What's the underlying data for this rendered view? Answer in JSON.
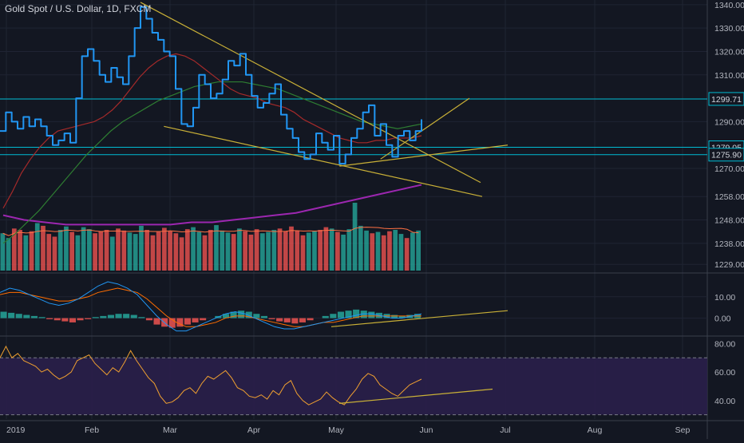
{
  "title": "Gold Spot / U.S. Dollar, 1D, FXCM",
  "colors": {
    "background": "#131722",
    "grid": "#1f2433",
    "price_line": "#2196f3",
    "sma_short": "#a52a2a",
    "sma_mid": "#2e7d32",
    "sma_long": "#9c27b0",
    "trendline": "#c9b037",
    "horizontal_level": "#00bcd4",
    "volume_up": "#26a69a",
    "volume_down": "#ef5350",
    "volume_ma": "#ff7043",
    "macd_line": "#2196f3",
    "signal_line": "#ff6d00",
    "rsi_line": "#f0a030",
    "rsi_band": "#2a1f4a",
    "axis_text": "#b2b5be"
  },
  "chart_data": [
    {
      "type": "line",
      "panel": "price",
      "title": "Gold Spot / U.S. Dollar, 1D, FXCM",
      "ylim": [
        1226,
        1342
      ],
      "x_ticks": [
        "2019",
        "Feb",
        "Mar",
        "Apr",
        "May",
        "Jun",
        "Jul",
        "Aug",
        "Sep"
      ],
      "y_ticks": [
        1340.0,
        1330.0,
        1320.0,
        1310.0,
        1290.0,
        1270.0,
        1258.0,
        1248.0,
        1238.0,
        1229.0
      ],
      "y_tick_labels": [
        "1340.00",
        "1330.00",
        "1320.00",
        "1310.00",
        "1290.00",
        "1270.00",
        "1258.00",
        "1248.00",
        "1238.00",
        "1229.00"
      ],
      "price_labels": [
        {
          "label": "1299.71",
          "value": 1299.71
        },
        {
          "label": "1279.05",
          "value": 1279.05
        },
        {
          "label": "1275.90",
          "value": 1275.9
        }
      ],
      "horizontal_levels": [
        1299.71,
        1279.05,
        1275.9
      ],
      "series": [
        {
          "role": "price",
          "values": [
            1286,
            1294,
            1290,
            1287,
            1292,
            1288,
            1291,
            1288,
            1284,
            1280,
            1282,
            1285,
            1281,
            1300,
            1318,
            1321,
            1316,
            1310,
            1307,
            1313,
            1309,
            1306,
            1318,
            1330,
            1339,
            1334,
            1328,
            1325,
            1320,
            1318,
            1304,
            1289,
            1288,
            1296,
            1310,
            1306,
            1300,
            1302,
            1308,
            1316,
            1314,
            1319,
            1310,
            1301,
            1296,
            1298,
            1302,
            1306,
            1293,
            1287,
            1283,
            1277,
            1274,
            1276,
            1285,
            1281,
            1278,
            1284,
            1272,
            1276,
            1283,
            1287,
            1294,
            1297,
            1284,
            1289,
            1280,
            1275,
            1284,
            1286,
            1282,
            1286,
            1291
          ]
        },
        {
          "role": "sma-short",
          "values": [
            1253,
            1260,
            1268,
            1274,
            1279,
            1283,
            1286,
            1287,
            1288,
            1289,
            1290,
            1292,
            1295,
            1299,
            1304,
            1309,
            1313,
            1316,
            1318,
            1319,
            1318,
            1316,
            1313,
            1310,
            1307,
            1304,
            1302,
            1301,
            1300,
            1298,
            1297,
            1296,
            1294,
            1291,
            1289,
            1287,
            1285,
            1283,
            1282,
            1281,
            1281,
            1282,
            1282,
            1283,
            1283,
            1283,
            1284
          ]
        },
        {
          "role": "sma-mid",
          "values": [
            1238,
            1242,
            1247,
            1252,
            1258,
            1264,
            1270,
            1276,
            1281,
            1286,
            1290,
            1293,
            1296,
            1299,
            1301,
            1303,
            1305,
            1306,
            1307,
            1307,
            1307,
            1306,
            1305,
            1304,
            1302,
            1300,
            1298,
            1296,
            1294,
            1292,
            1290,
            1289,
            1288,
            1287,
            1288,
            1289
          ]
        },
        {
          "role": "sma-long",
          "values": [
            1250,
            1248,
            1247,
            1246,
            1246,
            1246,
            1246,
            1246,
            1246,
            1247,
            1247,
            1248,
            1249,
            1250,
            1251,
            1253,
            1255,
            1257,
            1259,
            1261,
            1263
          ]
        }
      ]
    },
    {
      "type": "bar",
      "panel": "volume",
      "series": [
        {
          "role": "volume",
          "values": [
            55,
            48,
            62,
            60,
            52,
            58,
            70,
            66,
            54,
            50,
            60,
            65,
            57,
            52,
            64,
            61,
            55,
            58,
            60,
            50,
            62,
            59,
            56,
            54,
            66,
            60,
            52,
            57,
            63,
            58,
            55,
            49,
            61,
            64,
            57,
            52,
            60,
            67,
            59,
            56,
            54,
            62,
            58,
            53,
            61,
            55,
            57,
            60,
            62,
            58,
            65,
            59,
            52,
            56,
            58,
            60,
            64,
            62,
            57,
            53,
            61,
            100,
            66,
            59,
            55,
            57,
            52,
            58,
            60,
            54,
            48,
            56,
            59
          ]
        }
      ]
    },
    {
      "type": "bar",
      "panel": "macd",
      "y_ticks": [
        10.0,
        0.0
      ],
      "y_tick_labels": [
        "10.00",
        "0.00"
      ],
      "series": [
        {
          "role": "histogram",
          "values": [
            3,
            2.5,
            2,
            1.5,
            1,
            0.5,
            -0.5,
            -1,
            -1.5,
            -2,
            -1,
            -0.5,
            0.5,
            1,
            1.5,
            2,
            2,
            1.5,
            0.5,
            -1,
            -3,
            -4,
            -4.5,
            -4,
            -3,
            -2,
            -1,
            0,
            1,
            2,
            3,
            3.5,
            3,
            2,
            1,
            -0.5,
            -1.5,
            -2,
            -2.5,
            -2,
            -1,
            0,
            1,
            2,
            3,
            3.5,
            4,
            3.5,
            3,
            2.5,
            2,
            1.5,
            1,
            1.5,
            2
          ]
        },
        {
          "role": "macd",
          "values": [
            12,
            14,
            13,
            11,
            9,
            7,
            6,
            7,
            9,
            12,
            15,
            17,
            16,
            14,
            11,
            6,
            1,
            -3,
            -6,
            -6,
            -4,
            -2,
            0,
            2,
            3,
            2,
            0,
            -2,
            -4,
            -5,
            -5,
            -4,
            -3,
            -2,
            -1,
            0,
            1,
            2,
            2,
            1,
            0,
            0,
            1,
            2
          ]
        },
        {
          "role": "signal",
          "values": [
            11,
            12,
            12,
            11,
            10,
            9,
            8,
            8,
            9,
            10,
            12,
            13,
            14,
            13,
            12,
            9,
            5,
            1,
            -2,
            -4,
            -4,
            -3,
            -2,
            0,
            1,
            1,
            0,
            -1,
            -2,
            -3,
            -4,
            -4,
            -3,
            -2,
            -2,
            -1,
            0,
            1,
            1,
            1,
            1,
            1,
            1,
            1
          ]
        }
      ]
    },
    {
      "type": "line",
      "panel": "rsi",
      "ylim": [
        27,
        83
      ],
      "y_ticks": [
        80.0,
        60.0,
        40.0
      ],
      "y_tick_labels": [
        "80.00",
        "60.00",
        "40.00"
      ],
      "bands": [
        70,
        30
      ],
      "series": [
        {
          "role": "rsi",
          "values": [
            70,
            78,
            70,
            73,
            68,
            66,
            64,
            60,
            62,
            58,
            55,
            57,
            60,
            68,
            70,
            72,
            66,
            62,
            58,
            63,
            60,
            67,
            75,
            68,
            62,
            56,
            52,
            43,
            38,
            39,
            42,
            47,
            49,
            45,
            52,
            57,
            55,
            58,
            61,
            56,
            49,
            47,
            43,
            42,
            44,
            41,
            47,
            44,
            51,
            54,
            45,
            40,
            37,
            39,
            41,
            46,
            42,
            39,
            37,
            43,
            48,
            55,
            59,
            57,
            51,
            48,
            45,
            43,
            47,
            51,
            53,
            55
          ]
        }
      ]
    }
  ]
}
